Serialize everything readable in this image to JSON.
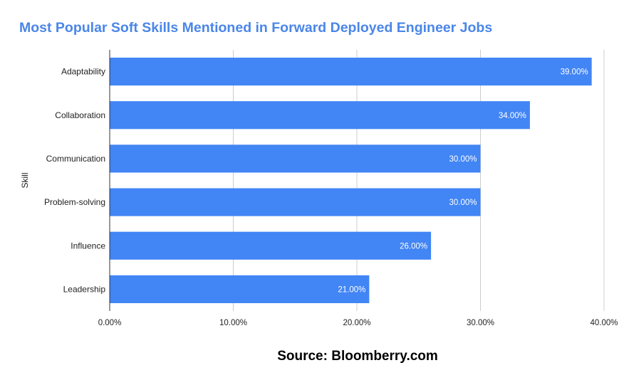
{
  "chart_data": {
    "type": "bar",
    "orientation": "horizontal",
    "title": "Most Popular Soft Skills Mentioned in Forward Deployed Engineer Jobs",
    "ylabel": "Skill",
    "xlabel": "",
    "categories": [
      "Adaptability",
      "Collaboration",
      "Communication",
      "Problem-solving",
      "Influence",
      "Leadership"
    ],
    "values": [
      39,
      34,
      30,
      30,
      26,
      21
    ],
    "value_labels": [
      "39.00%",
      "34.00%",
      "30.00%",
      "30.00%",
      "26.00%",
      "21.00%"
    ],
    "x_ticks": [
      "0.00%",
      "10.00%",
      "20.00%",
      "30.00%",
      "40.00%"
    ],
    "xlim": [
      0,
      40
    ],
    "grid": "vertical",
    "bar_color": "#4285f4",
    "title_color": "#4a86e8"
  },
  "caption": "Source: Bloomberry.com"
}
